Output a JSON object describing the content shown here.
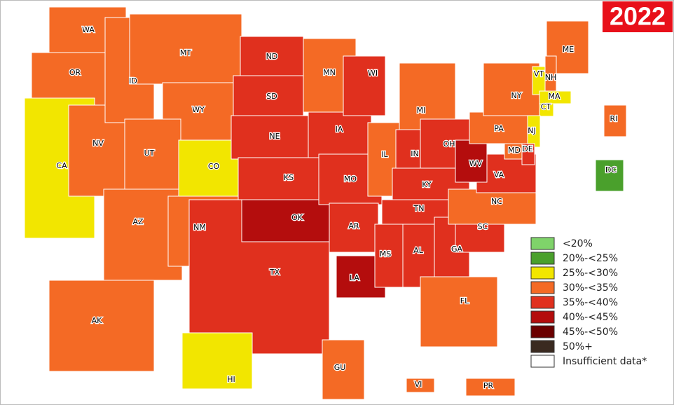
{
  "badge": "2022",
  "states": [
    {
      "label": "WA",
      "color": "#f46a25"
    },
    {
      "label": "OR",
      "color": "#f46a25"
    },
    {
      "label": "CA",
      "color": "#f2e600"
    },
    {
      "label": "NV",
      "color": "#f46a25"
    },
    {
      "label": "ID",
      "color": "#f46a25"
    },
    {
      "label": "MT",
      "color": "#f46a25"
    },
    {
      "label": "WY",
      "color": "#f46a25"
    },
    {
      "label": "UT",
      "color": "#f46a25"
    },
    {
      "label": "AZ",
      "color": "#f46a25"
    },
    {
      "label": "NM",
      "color": "#f46a25"
    },
    {
      "label": "CO",
      "color": "#f2e600"
    },
    {
      "label": "ND",
      "color": "#e0301e"
    },
    {
      "label": "SD",
      "color": "#e0301e"
    },
    {
      "label": "NE",
      "color": "#e0301e"
    },
    {
      "label": "KS",
      "color": "#e0301e"
    },
    {
      "label": "TX",
      "color": "#e0301e"
    },
    {
      "label": "OK",
      "color": "#b40d0d"
    },
    {
      "label": "MN",
      "color": "#f46a25"
    },
    {
      "label": "IA",
      "color": "#e0301e"
    },
    {
      "label": "MO",
      "color": "#e0301e"
    },
    {
      "label": "AR",
      "color": "#e0301e"
    },
    {
      "label": "LA",
      "color": "#b40d0d"
    },
    {
      "label": "WI",
      "color": "#e0301e"
    },
    {
      "label": "IL",
      "color": "#f46a25"
    },
    {
      "label": "MI",
      "color": "#f46a25"
    },
    {
      "label": "IN",
      "color": "#e0301e"
    },
    {
      "label": "OH",
      "color": "#e0301e"
    },
    {
      "label": "KY",
      "color": "#e0301e"
    },
    {
      "label": "TN",
      "color": "#e0301e"
    },
    {
      "label": "MS",
      "color": "#e0301e"
    },
    {
      "label": "AL",
      "color": "#e0301e"
    },
    {
      "label": "GA",
      "color": "#e0301e"
    },
    {
      "label": "FL",
      "color": "#f46a25"
    },
    {
      "label": "SC",
      "color": "#e0301e"
    },
    {
      "label": "NC",
      "color": "#f46a25"
    },
    {
      "label": "VA",
      "color": "#e0301e"
    },
    {
      "label": "WV",
      "color": "#b40d0d"
    },
    {
      "label": "PA",
      "color": "#f46a25"
    },
    {
      "label": "NY",
      "color": "#f46a25"
    },
    {
      "label": "ME",
      "color": "#f46a25"
    },
    {
      "label": "VT",
      "color": "#f2e600"
    },
    {
      "label": "NH",
      "color": "#f46a25"
    },
    {
      "label": "MA",
      "color": "#f2e600"
    },
    {
      "label": "CT",
      "color": "#f2e600"
    },
    {
      "label": "NJ",
      "color": "#f2e600"
    },
    {
      "label": "MD",
      "color": "#f46a25"
    },
    {
      "label": "DE",
      "color": "#e0301e"
    },
    {
      "label": "RI",
      "color": "#f46a25"
    },
    {
      "label": "DC",
      "color": "#4aa02c"
    },
    {
      "label": "AK",
      "color": "#f46a25"
    },
    {
      "label": "HI",
      "color": "#f2e600"
    },
    {
      "label": "GU",
      "color": "#f46a25"
    },
    {
      "label": "VI",
      "color": "#f46a25"
    },
    {
      "label": "PR",
      "color": "#f46a25"
    }
  ],
  "legend": [
    {
      "label": "<20%",
      "color": "#7fd36a"
    },
    {
      "label": "20%-<25%",
      "color": "#4aa02c"
    },
    {
      "label": "25%-<30%",
      "color": "#f2e600"
    },
    {
      "label": "30%-<35%",
      "color": "#f46a25"
    },
    {
      "label": "35%-<40%",
      "color": "#e0301e"
    },
    {
      "label": "40%-<45%",
      "color": "#b40d0d"
    },
    {
      "label": "45%-<50%",
      "color": "#6b0000"
    },
    {
      "label": "50%+",
      "color": "#3a2a20"
    },
    {
      "label": "Insufficient data*",
      "color": "#ffffff"
    }
  ]
}
